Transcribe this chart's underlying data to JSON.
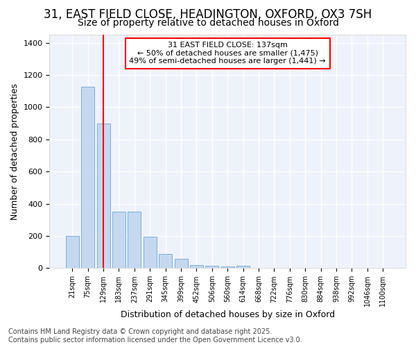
{
  "title1": "31, EAST FIELD CLOSE, HEADINGTON, OXFORD, OX3 7SH",
  "title2": "Size of property relative to detached houses in Oxford",
  "xlabel": "Distribution of detached houses by size in Oxford",
  "ylabel": "Number of detached properties",
  "bar_labels": [
    "21sqm",
    "75sqm",
    "129sqm",
    "183sqm",
    "237sqm",
    "291sqm",
    "345sqm",
    "399sqm",
    "452sqm",
    "506sqm",
    "560sqm",
    "614sqm",
    "668sqm",
    "722sqm",
    "776sqm",
    "830sqm",
    "884sqm",
    "938sqm",
    "992sqm",
    "1046sqm",
    "1100sqm"
  ],
  "bar_values": [
    200,
    1125,
    900,
    350,
    350,
    195,
    90,
    60,
    20,
    15,
    10,
    15,
    0,
    0,
    0,
    0,
    0,
    0,
    0,
    0,
    0
  ],
  "bar_color": "#c5d8f0",
  "bar_edge_color": "#7aaed4",
  "vline_x": 2.0,
  "vline_color": "red",
  "annotation_text": "31 EAST FIELD CLOSE: 137sqm\n← 50% of detached houses are smaller (1,475)\n49% of semi-detached houses are larger (1,441) →",
  "annotation_box_color": "white",
  "annotation_box_edge_color": "red",
  "ylim": [
    0,
    1450
  ],
  "yticks": [
    0,
    200,
    400,
    600,
    800,
    1000,
    1200,
    1400
  ],
  "bg_color": "#ffffff",
  "plot_bg_color": "#eef2fa",
  "footer_text": "Contains HM Land Registry data © Crown copyright and database right 2025.\nContains public sector information licensed under the Open Government Licence v3.0.",
  "title1_fontsize": 12,
  "title2_fontsize": 10,
  "xlabel_fontsize": 9,
  "ylabel_fontsize": 9,
  "footer_fontsize": 7,
  "annot_fontsize": 8
}
